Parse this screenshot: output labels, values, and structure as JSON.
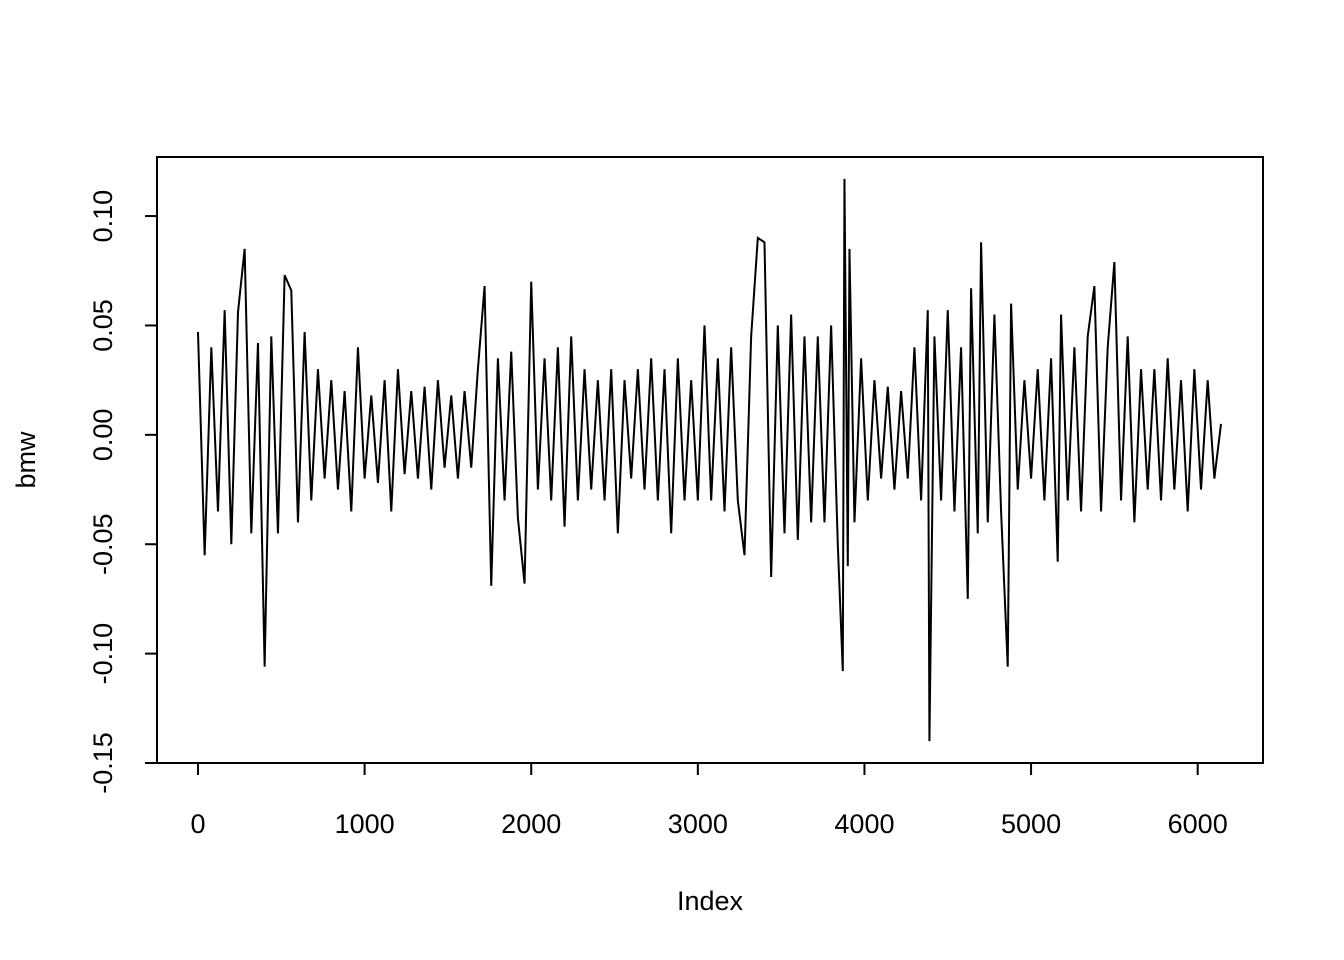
{
  "chart_data": {
    "type": "line",
    "x_label": "Index",
    "y_label": "bmw",
    "color": "#000000",
    "x": [
      0,
      40,
      80,
      120,
      160,
      200,
      240,
      280,
      320,
      360,
      400,
      440,
      480,
      520,
      560,
      600,
      640,
      680,
      720,
      760,
      800,
      840,
      880,
      920,
      960,
      1000,
      1040,
      1080,
      1120,
      1160,
      1200,
      1240,
      1280,
      1320,
      1360,
      1400,
      1440,
      1480,
      1520,
      1560,
      1600,
      1640,
      1680,
      1720,
      1760,
      1800,
      1840,
      1880,
      1920,
      1960,
      2000,
      2040,
      2080,
      2120,
      2160,
      2200,
      2240,
      2280,
      2320,
      2360,
      2400,
      2440,
      2480,
      2520,
      2560,
      2600,
      2640,
      2680,
      2720,
      2760,
      2800,
      2840,
      2880,
      2920,
      2960,
      3000,
      3040,
      3080,
      3120,
      3160,
      3200,
      3240,
      3280,
      3320,
      3360,
      3400,
      3440,
      3480,
      3520,
      3560,
      3600,
      3640,
      3680,
      3720,
      3760,
      3800,
      3840,
      3870,
      3880,
      3900,
      3910,
      3940,
      3980,
      4020,
      4060,
      4100,
      4140,
      4180,
      4220,
      4260,
      4300,
      4340,
      4380,
      4390,
      4420,
      4460,
      4500,
      4540,
      4580,
      4620,
      4640,
      4680,
      4700,
      4740,
      4780,
      4820,
      4860,
      4880,
      4920,
      4960,
      5000,
      5040,
      5080,
      5120,
      5160,
      5180,
      5220,
      5260,
      5300,
      5340,
      5380,
      5420,
      5460,
      5500,
      5540,
      5580,
      5620,
      5660,
      5700,
      5740,
      5780,
      5820,
      5860,
      5900,
      5940,
      5980,
      6020,
      6060,
      6100,
      6140
    ],
    "values": [
      0.047,
      -0.055,
      0.04,
      -0.035,
      0.057,
      -0.05,
      0.056,
      0.085,
      -0.045,
      0.042,
      -0.106,
      0.045,
      -0.045,
      0.073,
      0.066,
      -0.04,
      0.047,
      -0.03,
      0.03,
      -0.02,
      0.025,
      -0.025,
      0.02,
      -0.035,
      0.04,
      -0.02,
      0.018,
      -0.022,
      0.025,
      -0.035,
      0.03,
      -0.018,
      0.02,
      -0.02,
      0.022,
      -0.025,
      0.025,
      -0.015,
      0.018,
      -0.02,
      0.02,
      -0.015,
      0.03,
      0.068,
      -0.069,
      0.035,
      -0.03,
      0.038,
      -0.038,
      -0.068,
      0.07,
      -0.025,
      0.035,
      -0.03,
      0.04,
      -0.042,
      0.045,
      -0.03,
      0.03,
      -0.025,
      0.025,
      -0.03,
      0.03,
      -0.045,
      0.025,
      -0.02,
      0.03,
      -0.025,
      0.035,
      -0.03,
      0.03,
      -0.045,
      0.035,
      -0.03,
      0.025,
      -0.03,
      0.05,
      -0.03,
      0.035,
      -0.035,
      0.04,
      -0.03,
      -0.055,
      0.045,
      0.09,
      0.088,
      -0.065,
      0.05,
      -0.045,
      0.055,
      -0.048,
      0.045,
      -0.04,
      0.045,
      -0.04,
      0.05,
      -0.05,
      -0.108,
      0.117,
      -0.06,
      0.085,
      -0.04,
      0.035,
      -0.03,
      0.025,
      -0.02,
      0.022,
      -0.025,
      0.02,
      -0.02,
      0.04,
      -0.03,
      0.057,
      -0.14,
      0.045,
      -0.03,
      0.057,
      -0.035,
      0.04,
      -0.075,
      0.067,
      -0.045,
      0.088,
      -0.04,
      0.055,
      -0.035,
      -0.106,
      0.06,
      -0.025,
      0.025,
      -0.02,
      0.03,
      -0.03,
      0.035,
      -0.058,
      0.055,
      -0.03,
      0.04,
      -0.035,
      0.045,
      0.068,
      -0.035,
      0.04,
      0.079,
      -0.03,
      0.045,
      -0.04,
      0.03,
      -0.025,
      0.03,
      -0.03,
      0.035,
      -0.025,
      0.025,
      -0.035,
      0.03,
      -0.025,
      0.025,
      -0.02,
      0.005
    ],
    "xlim": [
      -246,
      6392
    ],
    "ylim": [
      -0.15,
      0.127
    ],
    "xticks": [
      0,
      1000,
      2000,
      3000,
      4000,
      5000,
      6000
    ],
    "yticks": [
      {
        "value": -0.15,
        "label": "-0.15"
      },
      {
        "value": -0.1,
        "label": "-0.10"
      },
      {
        "value": -0.05,
        "label": "-0.05"
      },
      {
        "value": 0,
        "label": "0.00"
      },
      {
        "value": 0.05,
        "label": "0.05"
      },
      {
        "value": 0.1,
        "label": "0.10"
      }
    ]
  }
}
